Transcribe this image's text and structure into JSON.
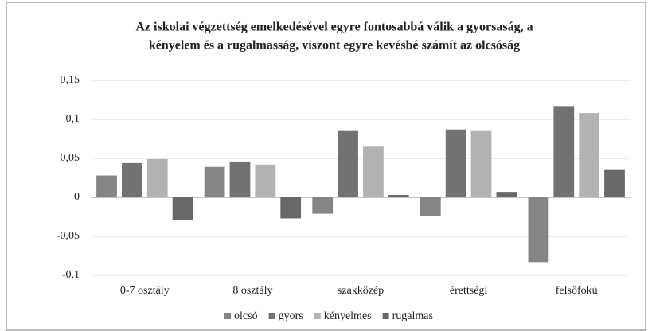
{
  "chart_data": {
    "type": "bar",
    "title": [
      "Az iskolai végzettség emelkedésével egyre fontosabbá válik a gyorsaság, a",
      "kényelem és a rugalmasság, viszont egyre kevésbé számít az olcsóság"
    ],
    "categories": [
      "0-7 osztály",
      "8 osztály",
      "szakközép",
      "érettségi",
      "felsőfokú"
    ],
    "series": [
      {
        "name": "olcsó",
        "color": "#858585",
        "values": [
          0.028,
          0.039,
          -0.021,
          -0.024,
          -0.083
        ]
      },
      {
        "name": "gyors",
        "color": "#727272",
        "values": [
          0.044,
          0.046,
          0.085,
          0.087,
          0.117
        ]
      },
      {
        "name": "kényelmes",
        "color": "#b2b2b2",
        "values": [
          0.049,
          0.042,
          0.065,
          0.085,
          0.108
        ]
      },
      {
        "name": "rugalmas",
        "color": "#686868",
        "values": [
          -0.029,
          -0.027,
          0.003,
          0.007,
          0.035
        ]
      }
    ],
    "ylim": [
      -0.1,
      0.15
    ],
    "yticks": [
      {
        "value": -0.1,
        "label": "-0,1"
      },
      {
        "value": -0.05,
        "label": "-0,05"
      },
      {
        "value": 0,
        "label": "0"
      },
      {
        "value": 0.05,
        "label": "0,05"
      },
      {
        "value": 0.1,
        "label": "0,1"
      },
      {
        "value": 0.15,
        "label": "0,15"
      }
    ],
    "grid": true,
    "legend": "bottom"
  }
}
